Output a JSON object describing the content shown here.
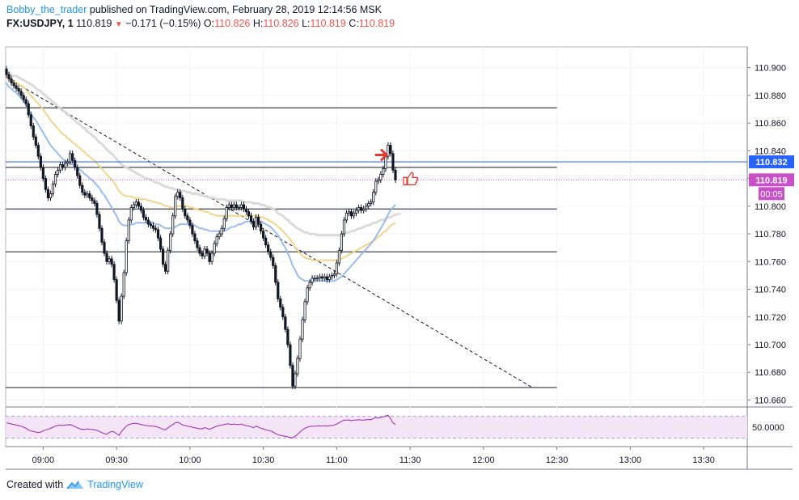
{
  "header": {
    "author": "Bobby_the_trader",
    "published": " published on TradingView.com, February 28, 2019 12:14:56 MSK",
    "symbol": "FX:USDJPY, 1",
    "last": "110.819",
    "change": "−0.171 (−0.15%)",
    "o_label": "O:",
    "o_value": "110.826",
    "h_label": "H:",
    "h_value": "110.826",
    "l_label": "L:",
    "l_value": "110.819",
    "c_label": "C:",
    "c_value": "110.819"
  },
  "footer": {
    "created_with": "Created with",
    "brand": "TradingView"
  },
  "colors": {
    "candle_up": "#ffffff",
    "candle_down": "#131722",
    "wick": "#131722",
    "ma_fast": "#90b4e8",
    "ma_mid": "#f0d080",
    "ma_slow": "#d6d6d6",
    "blue_level": "#2962ff",
    "last_price": "#c850c8",
    "rsi": "#9c27b0",
    "arrow_red": "#e53935"
  },
  "chart_data": {
    "type": "candlestick",
    "y_range": [
      110.655,
      110.915
    ],
    "y_ticks": [
      "110.900",
      "110.880",
      "110.860",
      "110.840",
      "110.820",
      "110.800",
      "110.780",
      "110.760",
      "110.740",
      "110.720",
      "110.700",
      "110.680",
      "110.660"
    ],
    "x_ticks": [
      "09:00",
      "09:30",
      "10:00",
      "10:30",
      "11:00",
      "11:30",
      "12:00",
      "12:30",
      "13:00",
      "13:30"
    ],
    "price_badge_level": "110.832",
    "price_badge_last": "110.819",
    "countdown": "00:05",
    "rsi_tick": "50.0000",
    "start_time": "08:45",
    "bar_minutes": 1,
    "close": [
      110.895,
      110.892,
      110.889,
      110.887,
      110.885,
      110.883,
      110.88,
      110.877,
      110.874,
      110.866,
      110.858,
      110.85,
      110.844,
      110.836,
      110.828,
      110.82,
      110.812,
      110.806,
      110.809,
      110.816,
      110.823,
      110.826,
      110.83,
      110.828,
      110.831,
      110.832,
      110.838,
      110.833,
      110.828,
      110.822,
      110.815,
      110.81,
      110.808,
      110.809,
      110.806,
      110.804,
      110.802,
      110.794,
      110.784,
      110.774,
      110.766,
      110.76,
      110.762,
      110.758,
      110.747,
      110.732,
      110.717,
      110.735,
      110.752,
      110.775,
      110.79,
      110.799,
      110.801,
      110.803,
      110.8,
      110.797,
      110.792,
      110.79,
      110.787,
      110.786,
      110.784,
      110.783,
      110.777,
      110.769,
      110.758,
      110.753,
      110.768,
      110.78,
      110.793,
      110.807,
      110.81,
      110.806,
      110.798,
      110.793,
      110.79,
      110.786,
      110.78,
      110.775,
      110.77,
      110.766,
      110.764,
      110.769,
      110.766,
      110.76,
      110.766,
      110.773,
      110.778,
      110.78,
      110.784,
      110.791,
      110.799,
      110.801,
      110.799,
      110.801,
      110.799,
      110.799,
      110.801,
      110.798,
      110.796,
      110.793,
      110.789,
      110.785,
      110.792,
      110.787,
      110.782,
      110.777,
      110.772,
      110.767,
      110.763,
      110.757,
      110.745,
      110.733,
      110.727,
      110.72,
      110.711,
      110.7,
      110.685,
      110.67,
      110.679,
      110.69,
      110.704,
      110.718,
      110.731,
      110.741,
      110.745,
      110.748,
      110.748,
      110.748,
      110.749,
      110.748,
      110.749,
      110.747,
      110.749,
      110.75,
      110.751,
      110.759,
      110.768,
      110.78,
      110.79,
      110.795,
      110.796,
      110.793,
      110.795,
      110.797,
      110.799,
      110.797,
      110.798,
      110.8,
      110.802,
      110.803,
      110.81,
      110.818,
      110.819,
      110.823,
      110.827,
      110.836,
      110.844,
      110.838,
      110.826,
      110.819
    ],
    "ema_fast": [
      110.889,
      110.886,
      110.885,
      110.883,
      110.882,
      110.88,
      110.878,
      110.876,
      110.873,
      110.87,
      110.867,
      110.864,
      110.862,
      110.859,
      110.856,
      110.853,
      110.85,
      110.847,
      110.844,
      110.842,
      110.84,
      110.838,
      110.836,
      110.834,
      110.833,
      110.832,
      110.831,
      110.83,
      110.829,
      110.828,
      110.826,
      110.825,
      110.823,
      110.822,
      110.82,
      110.819,
      110.817,
      110.815,
      110.813,
      110.81,
      110.808,
      110.805,
      110.802,
      110.799,
      110.796,
      110.793,
      110.789,
      110.787,
      110.786,
      110.786,
      110.786,
      110.787,
      110.787,
      110.788,
      110.788,
      110.788,
      110.788,
      110.788,
      110.788,
      110.788,
      110.788,
      110.787,
      110.787,
      110.786,
      110.785,
      110.784,
      110.784,
      110.784,
      110.784,
      110.785,
      110.786,
      110.787,
      110.787,
      110.787,
      110.787,
      110.787,
      110.787,
      110.786,
      110.785,
      110.784,
      110.784,
      110.783,
      110.783,
      110.782,
      110.782,
      110.782,
      110.782,
      110.782,
      110.782,
      110.782,
      110.783,
      110.784,
      110.785,
      110.785,
      110.786,
      110.787,
      110.787,
      110.788,
      110.789,
      110.789,
      110.789,
      110.789,
      110.789,
      110.789,
      110.789,
      110.788,
      110.787,
      110.786,
      110.785,
      110.783,
      110.781,
      110.779,
      110.776,
      110.773,
      110.77,
      110.766,
      110.762,
      110.757,
      110.754,
      110.75,
      110.748,
      110.747,
      110.746,
      110.746,
      110.746,
      110.746,
      110.746,
      110.746,
      110.746,
      110.746,
      110.746,
      110.746,
      110.746,
      110.746,
      110.746,
      110.747,
      110.748,
      110.749,
      110.751,
      110.753,
      110.755,
      110.757,
      110.759,
      110.761,
      110.763,
      110.765,
      110.767,
      110.769,
      110.771,
      110.773,
      110.775,
      110.778,
      110.781,
      110.784,
      110.787,
      110.79,
      110.794,
      110.797,
      110.799,
      110.801
    ],
    "ema_mid": [
      110.893,
      110.892,
      110.891,
      110.89,
      110.889,
      110.888,
      110.887,
      110.886,
      110.884,
      110.882,
      110.88,
      110.878,
      110.876,
      110.874,
      110.872,
      110.87,
      110.867,
      110.865,
      110.862,
      110.86,
      110.858,
      110.856,
      110.854,
      110.852,
      110.851,
      110.849,
      110.848,
      110.846,
      110.845,
      110.843,
      110.842,
      110.84,
      110.839,
      110.837,
      110.836,
      110.834,
      110.833,
      110.831,
      110.829,
      110.827,
      110.825,
      110.823,
      110.821,
      110.819,
      110.817,
      110.814,
      110.811,
      110.809,
      110.808,
      110.807,
      110.807,
      110.807,
      110.806,
      110.806,
      110.806,
      110.805,
      110.805,
      110.805,
      110.804,
      110.804,
      110.803,
      110.803,
      110.802,
      110.802,
      110.801,
      110.8,
      110.8,
      110.799,
      110.799,
      110.799,
      110.8,
      110.8,
      110.8,
      110.8,
      110.8,
      110.799,
      110.799,
      110.798,
      110.798,
      110.797,
      110.797,
      110.796,
      110.796,
      110.795,
      110.794,
      110.794,
      110.793,
      110.793,
      110.793,
      110.793,
      110.793,
      110.793,
      110.793,
      110.793,
      110.793,
      110.793,
      110.793,
      110.793,
      110.793,
      110.793,
      110.793,
      110.793,
      110.793,
      110.793,
      110.792,
      110.792,
      110.791,
      110.79,
      110.789,
      110.788,
      110.787,
      110.785,
      110.784,
      110.782,
      110.78,
      110.778,
      110.776,
      110.773,
      110.77,
      110.768,
      110.766,
      110.764,
      110.763,
      110.762,
      110.762,
      110.761,
      110.761,
      110.761,
      110.761,
      110.761,
      110.761,
      110.761,
      110.761,
      110.761,
      110.761,
      110.761,
      110.762,
      110.762,
      110.763,
      110.764,
      110.765,
      110.766,
      110.767,
      110.768,
      110.769,
      110.77,
      110.771,
      110.772,
      110.773,
      110.774,
      110.775,
      110.776,
      110.778,
      110.779,
      110.781,
      110.782,
      110.784,
      110.786,
      110.787,
      110.788
    ],
    "ema_slow": [
      110.896,
      110.896,
      110.895,
      110.894,
      110.894,
      110.893,
      110.892,
      110.891,
      110.89,
      110.889,
      110.888,
      110.887,
      110.885,
      110.884,
      110.883,
      110.881,
      110.88,
      110.878,
      110.877,
      110.875,
      110.874,
      110.872,
      110.871,
      110.869,
      110.868,
      110.866,
      110.865,
      110.863,
      110.862,
      110.86,
      110.859,
      110.857,
      110.856,
      110.854,
      110.853,
      110.851,
      110.85,
      110.848,
      110.846,
      110.845,
      110.843,
      110.841,
      110.839,
      110.838,
      110.836,
      110.834,
      110.832,
      110.83,
      110.829,
      110.828,
      110.827,
      110.826,
      110.825,
      110.824,
      110.823,
      110.822,
      110.821,
      110.82,
      110.82,
      110.819,
      110.818,
      110.817,
      110.817,
      110.816,
      110.815,
      110.814,
      110.814,
      110.813,
      110.813,
      110.812,
      110.812,
      110.811,
      110.811,
      110.811,
      110.81,
      110.81,
      110.809,
      110.809,
      110.809,
      110.808,
      110.808,
      110.807,
      110.807,
      110.806,
      110.806,
      110.806,
      110.805,
      110.805,
      110.805,
      110.805,
      110.804,
      110.804,
      110.804,
      110.804,
      110.804,
      110.804,
      110.804,
      110.803,
      110.803,
      110.803,
      110.803,
      110.802,
      110.802,
      110.802,
      110.801,
      110.801,
      110.8,
      110.799,
      110.799,
      110.798,
      110.797,
      110.795,
      110.794,
      110.793,
      110.791,
      110.79,
      110.788,
      110.787,
      110.785,
      110.784,
      110.783,
      110.782,
      110.781,
      110.781,
      110.78,
      110.78,
      110.78,
      110.779,
      110.779,
      110.779,
      110.779,
      110.779,
      110.779,
      110.779,
      110.779,
      110.779,
      110.779,
      110.78,
      110.78,
      110.781,
      110.781,
      110.782,
      110.782,
      110.783,
      110.784,
      110.784,
      110.785,
      110.786,
      110.786,
      110.787,
      110.788,
      110.788,
      110.789,
      110.79,
      110.79,
      110.791,
      110.792,
      110.792,
      110.793,
      110.794,
      110.794,
      110.795
    ],
    "horizontal_levels": [
      110.871,
      110.828,
      110.798,
      110.767,
      110.669
    ],
    "blue_level_value": 110.832,
    "trendline": {
      "from": [
        "08:45",
        110.893
      ],
      "to": [
        "12:20",
        110.669
      ]
    },
    "rsi": [
      58,
      57,
      56,
      55,
      54,
      53,
      52,
      50,
      48,
      45,
      43,
      42,
      41,
      40,
      41,
      43,
      45,
      46,
      48,
      50,
      52,
      53,
      54,
      53,
      54,
      54,
      55,
      53,
      51,
      49,
      47,
      46,
      46,
      47,
      46,
      46,
      45,
      44,
      42,
      40,
      38,
      37,
      40,
      42,
      41,
      38,
      35,
      42,
      47,
      52,
      55,
      56,
      57,
      57,
      56,
      55,
      54,
      53,
      53,
      52,
      52,
      51,
      50,
      48,
      46,
      45,
      49,
      52,
      55,
      58,
      59,
      57,
      54,
      53,
      52,
      51,
      50,
      49,
      48,
      47,
      47,
      49,
      48,
      46,
      48,
      50,
      52,
      53,
      54,
      55,
      56,
      56,
      55,
      56,
      55,
      55,
      56,
      54,
      53,
      52,
      51,
      49,
      52,
      50,
      48,
      47,
      45,
      44,
      43,
      41,
      38,
      36,
      35,
      34,
      33,
      32,
      31,
      30,
      33,
      37,
      41,
      45,
      48,
      50,
      51,
      52,
      52,
      52,
      53,
      52,
      53,
      52,
      53,
      53,
      54,
      56,
      58,
      61,
      63,
      63,
      63,
      62,
      63,
      63,
      64,
      63,
      63,
      64,
      64,
      64,
      66,
      68,
      67,
      68,
      69,
      71,
      72,
      66,
      58,
      55
    ]
  }
}
